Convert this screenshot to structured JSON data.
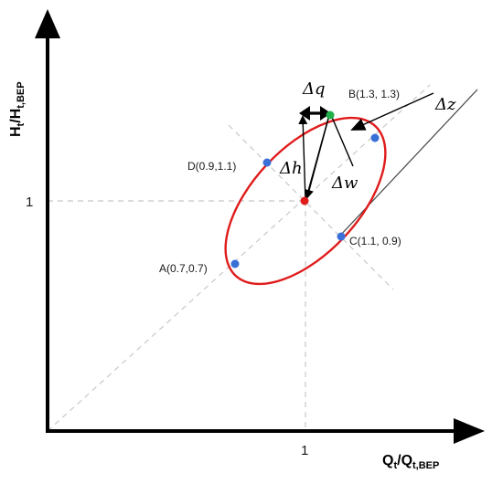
{
  "axes": {
    "x_label_main": "Q",
    "x_label_sub1": "t",
    "x_label_mid": "/Q",
    "x_label_sub2": "t,BEP",
    "y_label_main": "H",
    "y_label_sub1": "t",
    "y_label_mid": "/H",
    "y_label_sub2": "t,BEP",
    "x_tick": "1",
    "y_tick": "1"
  },
  "points": {
    "A": "A(0.7,0.7)",
    "B": "B(1.3, 1.3)",
    "C": "C(1.1, 0.9)",
    "D": "D(0.9,1.1)"
  },
  "deltas": {
    "dq": "Δq",
    "dz": "Δz",
    "dh": "Δh",
    "dw": "Δw"
  },
  "colors": {
    "ellipse": "#e01b1b",
    "point": "#3a6fd8",
    "green_point": "#1fb04a",
    "center_point": "#e01b1b",
    "guide": "#c8c8c8",
    "axis": "#000000"
  }
}
